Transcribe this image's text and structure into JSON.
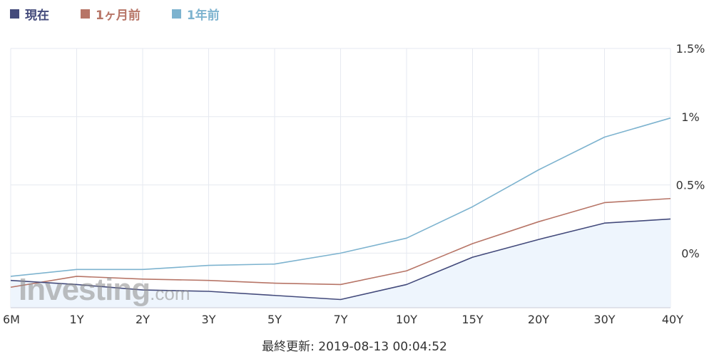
{
  "legend": {
    "items": [
      {
        "label": "現在",
        "color": "#434a7b"
      },
      {
        "label": "1ヶ月前",
        "color": "#b77567"
      },
      {
        "label": "1年前",
        "color": "#7db3cf"
      }
    ]
  },
  "watermark": {
    "main": "Investing",
    "suffix": ".com"
  },
  "footer": {
    "label": "最終更新:",
    "timestamp": "2019-08-13 00:04:52"
  },
  "chart_data": {
    "type": "line",
    "categories": [
      "6M",
      "1Y",
      "2Y",
      "3Y",
      "5Y",
      "7Y",
      "10Y",
      "15Y",
      "20Y",
      "30Y",
      "40Y"
    ],
    "y_ticks": [
      {
        "value": 1.5,
        "label": "1.5%"
      },
      {
        "value": 1.0,
        "label": "1%"
      },
      {
        "value": 0.5,
        "label": "0.5%"
      },
      {
        "value": 0.0,
        "label": "0%"
      }
    ],
    "ylim": [
      -0.4,
      1.5
    ],
    "grid": true,
    "legend_position": "top-left",
    "series": [
      {
        "name": "現在",
        "color": "#434a7b",
        "fill": "#eef5fd",
        "values": [
          -0.2,
          -0.23,
          -0.27,
          -0.28,
          -0.31,
          -0.34,
          -0.23,
          -0.03,
          0.1,
          0.22,
          0.25
        ]
      },
      {
        "name": "1ヶ月前",
        "color": "#b77567",
        "values": [
          -0.25,
          -0.17,
          -0.19,
          -0.2,
          -0.22,
          -0.23,
          -0.13,
          0.07,
          0.23,
          0.37,
          0.4
        ]
      },
      {
        "name": "1年前",
        "color": "#7db3cf",
        "values": [
          -0.17,
          -0.12,
          -0.12,
          -0.09,
          -0.08,
          0.0,
          0.11,
          0.34,
          0.61,
          0.85,
          0.99
        ]
      }
    ]
  }
}
